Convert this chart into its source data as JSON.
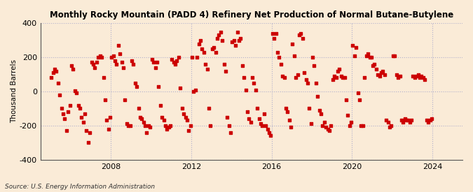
{
  "title": "Monthly Rocky Mountain (PADD 4) Refinery Net Production of Normal Butane-Butylene",
  "ylabel": "Thousand Barrels",
  "source": "Source: U.S. Energy Information Administration",
  "background_color": "#faebd7",
  "marker_color": "#cc0000",
  "xlim_start": 2004.5,
  "xlim_end": 2025.5,
  "ylim": [
    -400,
    400
  ],
  "yticks": [
    -400,
    -200,
    0,
    200,
    400
  ],
  "xticks": [
    2008,
    2012,
    2016,
    2020,
    2024
  ],
  "x_values": [
    2005.04,
    2005.12,
    2005.21,
    2005.29,
    2005.38,
    2005.46,
    2005.54,
    2005.63,
    2005.71,
    2005.79,
    2005.88,
    2005.96,
    2006.04,
    2006.12,
    2006.21,
    2006.29,
    2006.38,
    2006.46,
    2006.54,
    2006.63,
    2006.71,
    2006.79,
    2006.88,
    2006.96,
    2007.04,
    2007.12,
    2007.21,
    2007.29,
    2007.38,
    2007.46,
    2007.54,
    2007.63,
    2007.71,
    2007.79,
    2007.88,
    2007.96,
    2008.04,
    2008.12,
    2008.21,
    2008.29,
    2008.38,
    2008.46,
    2008.54,
    2008.63,
    2008.71,
    2008.79,
    2008.88,
    2008.96,
    2009.04,
    2009.12,
    2009.21,
    2009.29,
    2009.38,
    2009.46,
    2009.54,
    2009.63,
    2009.71,
    2009.79,
    2009.88,
    2009.96,
    2010.04,
    2010.12,
    2010.21,
    2010.29,
    2010.38,
    2010.46,
    2010.54,
    2010.63,
    2010.71,
    2010.79,
    2010.88,
    2010.96,
    2011.04,
    2011.12,
    2011.21,
    2011.29,
    2011.38,
    2011.46,
    2011.54,
    2011.63,
    2011.71,
    2011.79,
    2011.88,
    2011.96,
    2012.04,
    2012.12,
    2012.21,
    2012.29,
    2012.38,
    2012.46,
    2012.54,
    2012.63,
    2012.71,
    2012.79,
    2012.88,
    2012.96,
    2013.04,
    2013.12,
    2013.21,
    2013.29,
    2013.38,
    2013.46,
    2013.54,
    2013.63,
    2013.71,
    2013.79,
    2013.88,
    2013.96,
    2014.04,
    2014.12,
    2014.21,
    2014.29,
    2014.38,
    2014.46,
    2014.54,
    2014.63,
    2014.71,
    2014.79,
    2014.88,
    2014.96,
    2015.04,
    2015.12,
    2015.21,
    2015.29,
    2015.38,
    2015.46,
    2015.54,
    2015.63,
    2015.71,
    2015.79,
    2015.88,
    2015.96,
    2016.04,
    2016.12,
    2016.21,
    2016.29,
    2016.38,
    2016.46,
    2016.54,
    2016.63,
    2016.71,
    2016.79,
    2016.88,
    2016.96,
    2017.04,
    2017.12,
    2017.21,
    2017.29,
    2017.38,
    2017.46,
    2017.54,
    2017.63,
    2017.71,
    2017.79,
    2017.88,
    2017.96,
    2018.04,
    2018.12,
    2018.21,
    2018.29,
    2018.38,
    2018.46,
    2018.54,
    2018.63,
    2018.71,
    2018.79,
    2018.88,
    2018.96,
    2019.04,
    2019.12,
    2019.21,
    2019.29,
    2019.38,
    2019.46,
    2019.54,
    2019.63,
    2019.71,
    2019.79,
    2019.88,
    2019.96,
    2020.04,
    2020.12,
    2020.21,
    2020.29,
    2020.38,
    2020.46,
    2020.54,
    2020.63,
    2020.71,
    2020.79,
    2020.88,
    2020.96,
    2021.04,
    2021.12,
    2021.21,
    2021.29,
    2021.38,
    2021.46,
    2021.54,
    2021.63,
    2021.71,
    2021.79,
    2021.88,
    2021.96,
    2022.04,
    2022.12,
    2022.21,
    2022.29,
    2022.38,
    2022.46,
    2022.54,
    2022.63,
    2022.71,
    2022.79,
    2022.88,
    2022.96,
    2023.04,
    2023.12,
    2023.21,
    2023.29,
    2023.38,
    2023.46,
    2023.54,
    2023.63,
    2023.71,
    2023.79,
    2023.88,
    2023.96
  ],
  "y_values": [
    80,
    110,
    130,
    120,
    50,
    -20,
    -100,
    -130,
    -160,
    -230,
    -120,
    -80,
    150,
    130,
    5,
    -10,
    -80,
    -100,
    -150,
    -180,
    -130,
    -230,
    -300,
    -240,
    170,
    160,
    140,
    170,
    200,
    210,
    200,
    80,
    -50,
    -170,
    -220,
    -150,
    200,
    210,
    180,
    160,
    270,
    220,
    170,
    140,
    -50,
    -190,
    -200,
    -200,
    180,
    160,
    50,
    30,
    -100,
    -150,
    -160,
    -180,
    -200,
    -240,
    -200,
    -210,
    190,
    170,
    140,
    170,
    30,
    -80,
    -150,
    -170,
    -200,
    -220,
    -210,
    -200,
    190,
    170,
    160,
    180,
    200,
    20,
    -100,
    -130,
    -150,
    -170,
    -230,
    -200,
    200,
    0,
    10,
    200,
    280,
    300,
    250,
    230,
    160,
    130,
    -100,
    -200,
    250,
    260,
    230,
    310,
    330,
    350,
    300,
    160,
    120,
    -150,
    -200,
    -240,
    290,
    300,
    270,
    350,
    300,
    310,
    150,
    80,
    10,
    -120,
    -160,
    -180,
    80,
    50,
    10,
    -100,
    -160,
    -190,
    -200,
    -130,
    -200,
    -220,
    -240,
    -260,
    340,
    310,
    340,
    230,
    200,
    160,
    90,
    80,
    -100,
    -120,
    -170,
    -210,
    280,
    210,
    80,
    100,
    330,
    340,
    310,
    110,
    70,
    50,
    -100,
    -190,
    200,
    150,
    50,
    -30,
    -110,
    -130,
    -200,
    -180,
    -210,
    -220,
    -230,
    -200,
    70,
    90,
    80,
    120,
    130,
    90,
    80,
    80,
    -50,
    -140,
    -200,
    -180,
    270,
    210,
    260,
    -10,
    -50,
    -200,
    -200,
    80,
    210,
    220,
    200,
    200,
    150,
    160,
    130,
    100,
    90,
    110,
    120,
    100,
    -170,
    -180,
    -210,
    -200,
    210,
    210,
    100,
    80,
    90,
    -170,
    -180,
    -160,
    -170,
    -170,
    -180,
    -170,
    90,
    80,
    90,
    100,
    80,
    90,
    80,
    70,
    -170,
    -180,
    -170,
    -160
  ]
}
